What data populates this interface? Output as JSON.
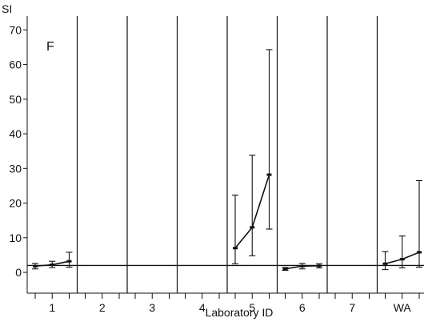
{
  "chart_data": {
    "type": "line",
    "panel_label": "F",
    "ylabel": "SI",
    "xlabel": "Laboratory ID",
    "ylim": [
      -6,
      74
    ],
    "yticks": [
      0,
      10,
      20,
      30,
      40,
      50,
      60,
      70
    ],
    "reference_line_y": 2,
    "grid": false,
    "legend": "none",
    "groups": [
      {
        "label": "1",
        "points": [
          {
            "x": 1,
            "y": 1.8,
            "low": 1.0,
            "high": 2.6
          },
          {
            "x": 2,
            "y": 2.2,
            "low": 1.4,
            "high": 3.2
          },
          {
            "x": 3,
            "y": 3.2,
            "low": 1.5,
            "high": 5.8
          }
        ]
      },
      {
        "label": "2",
        "points": []
      },
      {
        "label": "3",
        "points": []
      },
      {
        "label": "4",
        "points": []
      },
      {
        "label": "5",
        "points": [
          {
            "x": 1,
            "y": 7.0,
            "low": 2.5,
            "high": 22.3
          },
          {
            "x": 2,
            "y": 13.0,
            "low": 4.8,
            "high": 33.8
          },
          {
            "x": 3,
            "y": 28.2,
            "low": 12.5,
            "high": 64.3
          }
        ]
      },
      {
        "label": "6",
        "points": [
          {
            "x": 1,
            "y": 1.0,
            "low": 0.6,
            "high": 1.4
          },
          {
            "x": 2,
            "y": 1.8,
            "low": 1.0,
            "high": 2.6
          },
          {
            "x": 3,
            "y": 1.9,
            "low": 1.3,
            "high": 2.5
          }
        ]
      },
      {
        "label": "7",
        "points": []
      },
      {
        "label": "WA",
        "points": [
          {
            "x": 1,
            "y": 2.5,
            "low": 0.8,
            "high": 6.0
          },
          {
            "x": 2,
            "y": 3.8,
            "low": 1.3,
            "high": 10.5
          },
          {
            "x": 3,
            "y": 5.8,
            "low": 1.5,
            "high": 26.5
          }
        ]
      }
    ]
  }
}
